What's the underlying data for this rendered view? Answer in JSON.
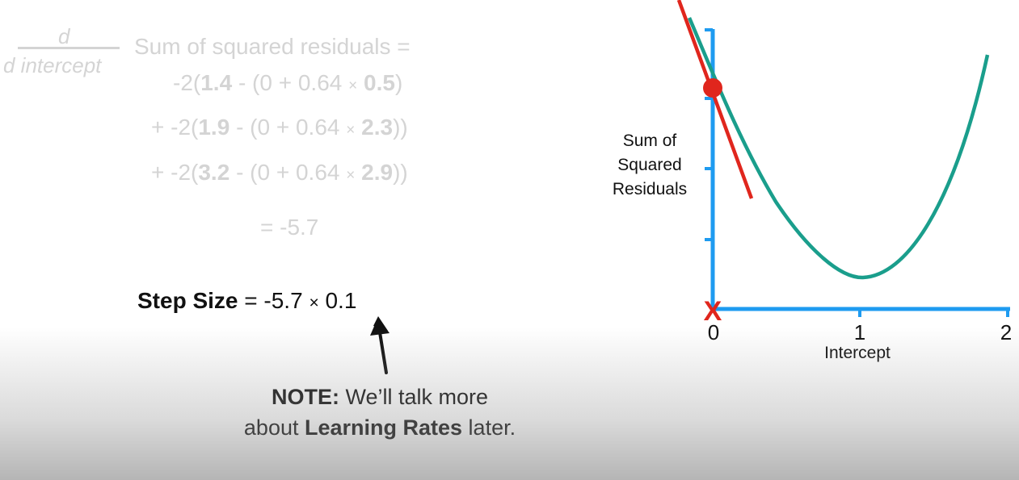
{
  "derivative": {
    "numerator": "d",
    "denominator": "d intercept",
    "lhs": "Sum of squared residuals ="
  },
  "terms": [
    {
      "prefix": "-2(",
      "observed": "1.4",
      "mid": " - (0 + 0.64 ",
      "times": "×",
      "x": "0.5",
      "suffix": ")"
    },
    {
      "prefix": "+ -2(",
      "observed": "1.9",
      "mid": " - (0 + 0.64 ",
      "times": "×",
      "x": "2.3",
      "suffix": "))"
    },
    {
      "prefix": "+ -2(",
      "observed": "3.2",
      "mid": " - (0 + 0.64 ",
      "times": "×",
      "x": "2.9",
      "suffix": "))"
    }
  ],
  "result": "= -5.7",
  "step_size": {
    "label": "Step Size",
    "equals": "= -5.7 ",
    "times": "×",
    "rate": " 0.1"
  },
  "note": {
    "bold": "NOTE:",
    "line1_rest": " We’ll talk more",
    "line2_pre": "about ",
    "line2_bold": "Learning Rates",
    "line2_post": " later."
  },
  "graph": {
    "ylabel_lines": [
      "Sum of",
      "Squared",
      "Residuals"
    ],
    "xlabel": "Intercept",
    "xticks": [
      "0",
      "1",
      "2"
    ],
    "marker": "X",
    "colors": {
      "axis": "#1e9bf0",
      "curve": "#1a9e8c",
      "tangent": "#e0261d",
      "point": "#e0261d",
      "marker": "#e0261d"
    }
  }
}
